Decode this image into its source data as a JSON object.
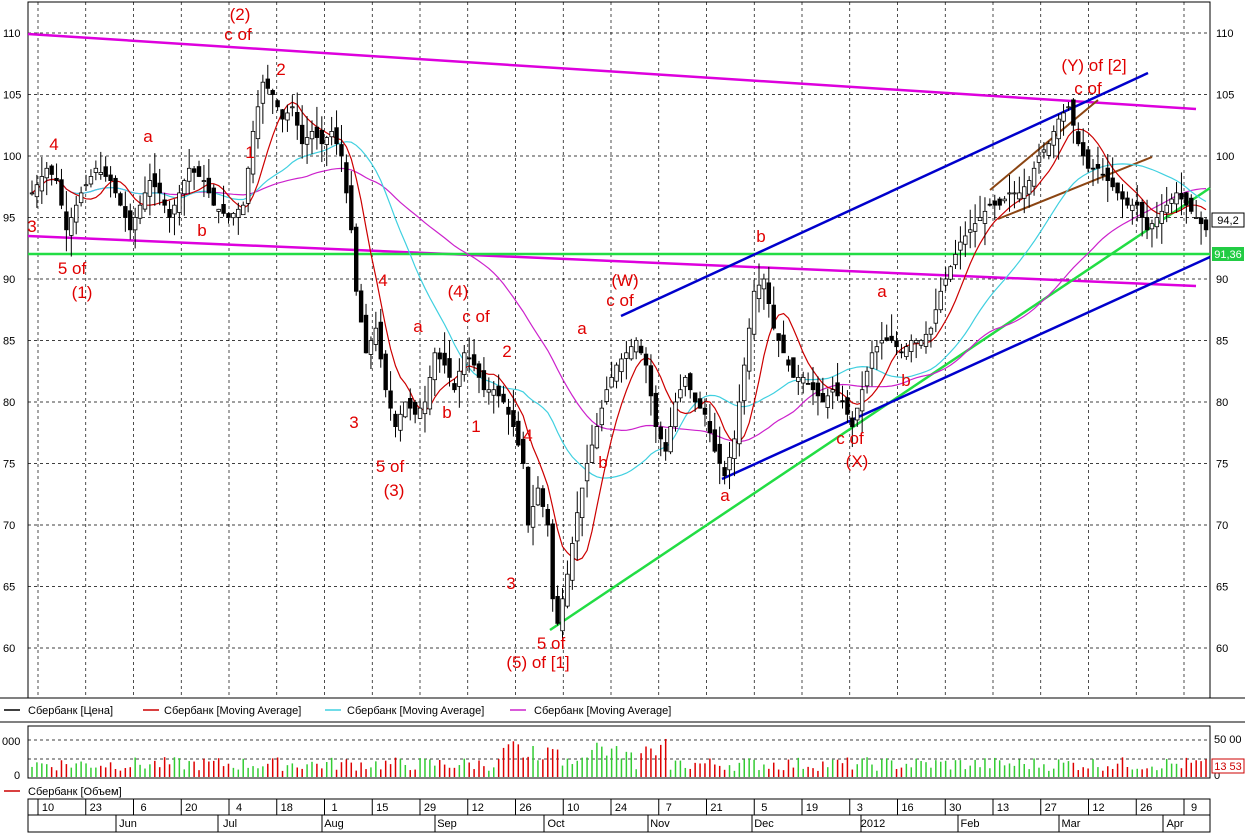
{
  "chart_data": {
    "type": "candlestick",
    "y_axis": {
      "ticks": [
        60,
        65,
        70,
        75,
        80,
        85,
        90,
        95,
        100,
        105,
        110
      ],
      "ylim": [
        56,
        112
      ]
    },
    "last_price_label": "94,2",
    "support_label": "91,36",
    "volume_panel": {
      "left_ticks": [
        "000",
        "0"
      ],
      "right_ticks": [
        "50 00",
        "0"
      ],
      "last_label": "13 53"
    },
    "legend": [
      {
        "label": "Сбербанк [Цена]",
        "color": "#000000"
      },
      {
        "label": "Сбербанк [Moving Average]",
        "color": "#cc0000"
      },
      {
        "label": "Сбербанк [Moving Average]",
        "color": "#40d0e0"
      },
      {
        "label": "Сбербанк [Moving Average]",
        "color": "#cc22cc"
      }
    ],
    "volume_legend": {
      "label": "Сбербанк [Объем]",
      "color": "#cc0000"
    },
    "x_axis": {
      "day_ticks": [
        "10",
        "23",
        "6",
        "20",
        "4",
        "18",
        "1",
        "15",
        "29",
        "12",
        "26",
        "10",
        "24",
        "7",
        "21",
        "5",
        "19",
        "3",
        "16",
        "30",
        "13",
        "27",
        "12",
        "26",
        "9"
      ],
      "month_ticks": [
        "Jun",
        "Jul",
        "Aug",
        "Sep",
        "Oct",
        "Nov",
        "Dec",
        "2012",
        "Feb",
        "Mar",
        "Apr"
      ]
    },
    "wave_labels": [
      "(2)",
      "c of",
      "2",
      "4",
      "3",
      "a",
      "b",
      "1",
      "5 of",
      "(1)",
      "4",
      "3",
      "a",
      "5 of",
      "(3)",
      "b",
      "(4)",
      "c of",
      "1",
      "2",
      "4",
      "3",
      "5 of",
      "(5) of [1]",
      "a",
      "b",
      "(W)",
      "c of",
      "a",
      "b",
      "a",
      "b",
      "c of",
      "(X)",
      "(Y) of [2]",
      "c of"
    ],
    "price_path": [
      [
        0,
        97
      ],
      [
        3,
        99
      ],
      [
        5,
        98
      ],
      [
        7,
        94
      ],
      [
        10,
        97
      ],
      [
        13,
        99
      ],
      [
        16,
        98
      ],
      [
        18,
        96
      ],
      [
        20,
        94
      ],
      [
        22,
        96
      ],
      [
        24,
        98
      ],
      [
        26,
        97
      ],
      [
        28,
        95
      ],
      [
        30,
        97
      ],
      [
        32,
        99
      ],
      [
        35,
        98
      ],
      [
        37,
        96
      ],
      [
        40,
        95
      ],
      [
        43,
        96
      ],
      [
        45,
        102
      ],
      [
        47,
        106
      ],
      [
        49,
        105
      ],
      [
        51,
        103
      ],
      [
        53,
        104
      ],
      [
        55,
        101
      ],
      [
        57,
        102
      ],
      [
        59,
        101
      ],
      [
        61,
        102
      ],
      [
        63,
        100
      ],
      [
        65,
        94
      ],
      [
        66,
        89
      ],
      [
        68,
        84
      ],
      [
        70,
        86
      ],
      [
        72,
        81
      ],
      [
        74,
        78
      ],
      [
        76,
        80
      ],
      [
        78,
        79
      ],
      [
        80,
        80
      ],
      [
        82,
        84
      ],
      [
        84,
        83
      ],
      [
        86,
        81
      ],
      [
        88,
        84
      ],
      [
        90,
        83
      ],
      [
        92,
        81
      ],
      [
        94,
        81
      ],
      [
        96,
        80
      ],
      [
        98,
        78
      ],
      [
        100,
        75
      ],
      [
        101,
        70
      ],
      [
        103,
        73
      ],
      [
        105,
        70
      ],
      [
        106,
        64
      ],
      [
        107,
        62
      ],
      [
        109,
        66
      ],
      [
        111,
        71
      ],
      [
        113,
        75
      ],
      [
        115,
        78
      ],
      [
        117,
        81
      ],
      [
        119,
        83
      ],
      [
        121,
        84
      ],
      [
        123,
        85
      ],
      [
        125,
        83
      ],
      [
        127,
        78
      ],
      [
        129,
        76
      ],
      [
        131,
        80
      ],
      [
        133,
        82
      ],
      [
        135,
        80
      ],
      [
        137,
        79
      ],
      [
        139,
        76
      ],
      [
        141,
        74
      ],
      [
        143,
        77
      ],
      [
        145,
        83
      ],
      [
        147,
        89
      ],
      [
        149,
        90
      ],
      [
        151,
        86
      ],
      [
        153,
        84
      ],
      [
        155,
        82
      ],
      [
        157,
        82
      ],
      [
        159,
        81
      ],
      [
        161,
        80
      ],
      [
        163,
        81
      ],
      [
        165,
        80
      ],
      [
        167,
        78
      ],
      [
        169,
        81
      ],
      [
        171,
        84
      ],
      [
        173,
        85
      ],
      [
        175,
        85
      ],
      [
        177,
        84
      ],
      [
        179,
        85
      ],
      [
        181,
        85
      ],
      [
        183,
        86
      ],
      [
        185,
        89
      ],
      [
        187,
        91
      ],
      [
        189,
        93
      ],
      [
        191,
        94
      ],
      [
        193,
        95
      ],
      [
        195,
        96
      ],
      [
        197,
        96
      ],
      [
        199,
        97
      ],
      [
        201,
        97
      ],
      [
        203,
        98
      ],
      [
        205,
        100
      ],
      [
        207,
        101
      ],
      [
        209,
        103
      ],
      [
        211,
        104
      ],
      [
        213,
        101
      ],
      [
        215,
        99
      ],
      [
        217,
        99
      ],
      [
        219,
        98
      ],
      [
        221,
        97
      ],
      [
        223,
        96
      ],
      [
        225,
        96
      ],
      [
        227,
        94
      ],
      [
        229,
        95
      ],
      [
        231,
        96
      ],
      [
        233,
        97
      ],
      [
        235,
        96
      ],
      [
        237,
        95
      ],
      [
        239,
        94
      ]
    ]
  }
}
